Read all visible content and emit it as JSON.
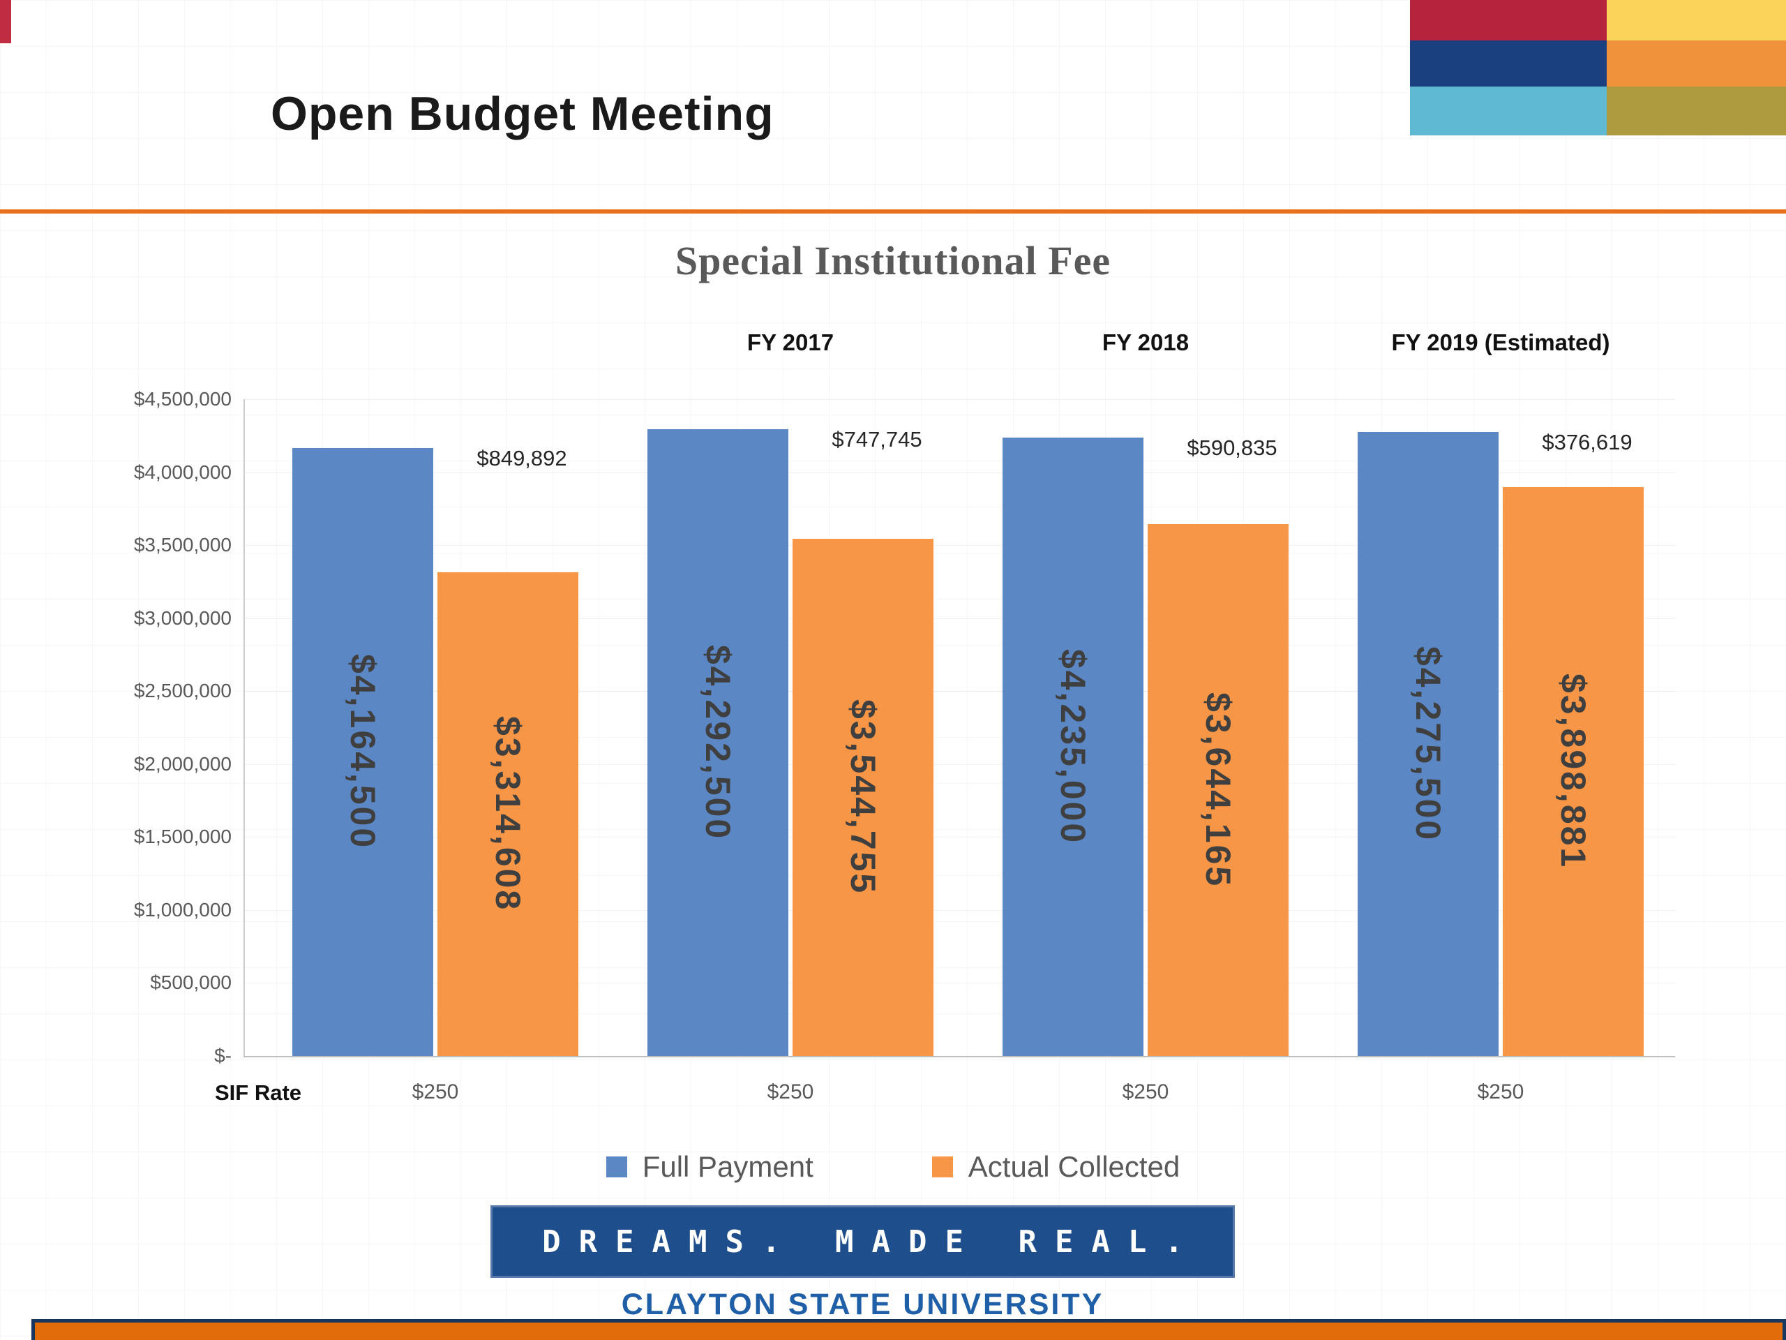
{
  "slide": {
    "title": "Open Budget Meeting",
    "footer": {
      "tagline": "DREAMS. MADE REAL.",
      "university": "CLAYTON STATE UNIVERSITY"
    },
    "logo": {
      "cells": [
        {
          "name": "logo-cell-crimson",
          "color": "#b5243c"
        },
        {
          "name": "logo-cell-yellow",
          "color": "#fbd35b"
        },
        {
          "name": "logo-cell-navy",
          "color": "#1b4080"
        },
        {
          "name": "logo-cell-orange",
          "color": "#f0923b"
        },
        {
          "name": "logo-cell-skyblue",
          "color": "#5fb9d2"
        },
        {
          "name": "logo-cell-olive",
          "color": "#af9b3f"
        }
      ]
    }
  },
  "theme": {
    "accent_orange": "#e8711c",
    "tagline_bg": "#1e4e8c",
    "university_blue": "#1f5fa8",
    "footer_orange": "#e36c0a",
    "footer_navy": "#17375e"
  },
  "chart_data": {
    "type": "bar",
    "title": "Special Institutional Fee",
    "categories": [
      "",
      "FY 2017",
      "FY 2018",
      "FY 2019 (Estimated)"
    ],
    "series": [
      {
        "name": "Full Payment",
        "color": "#5b87c5",
        "values": [
          4164500,
          4292500,
          4235000,
          4275500
        ],
        "labels": [
          "$4,164,500",
          "$4,292,500",
          "$4,235,000",
          "$4,275,500"
        ]
      },
      {
        "name": "Actual Collected",
        "color": "#f79646",
        "values": [
          3314608,
          3544755,
          3644165,
          3898881
        ],
        "labels": [
          "$3,314,608",
          "$3,544,755",
          "$3,644,165",
          "$3,898,881"
        ]
      }
    ],
    "gap_labels": [
      "$849,892",
      "$747,745",
      "$590,835",
      "$376,619"
    ],
    "x_axis_label": "SIF Rate",
    "x_tick_labels": [
      "$250",
      "$250",
      "$250",
      "$250"
    ],
    "y_ticks": [
      {
        "value": 0,
        "label": "$-"
      },
      {
        "value": 500000,
        "label": "$500,000"
      },
      {
        "value": 1000000,
        "label": "$1,000,000"
      },
      {
        "value": 1500000,
        "label": "$1,500,000"
      },
      {
        "value": 2000000,
        "label": "$2,000,000"
      },
      {
        "value": 2500000,
        "label": "$2,500,000"
      },
      {
        "value": 3000000,
        "label": "$3,000,000"
      },
      {
        "value": 3500000,
        "label": "$3,500,000"
      },
      {
        "value": 4000000,
        "label": "$4,000,000"
      },
      {
        "value": 4500000,
        "label": "$4,500,000"
      }
    ],
    "ylim": [
      0,
      4500000
    ],
    "legend_position": "bottom",
    "grid": true
  }
}
